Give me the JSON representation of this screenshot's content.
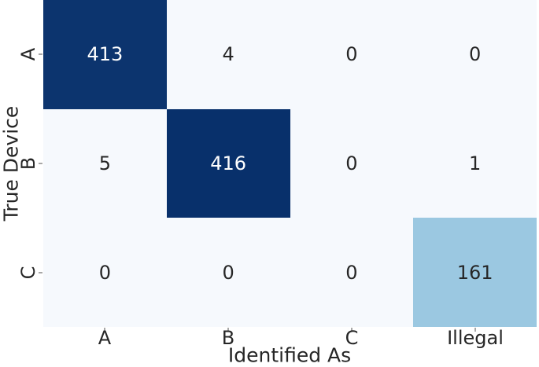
{
  "figure": {
    "background": "#ffffff",
    "artifact_color": "#dcdcdc"
  },
  "chart_data": {
    "type": "heatmap",
    "title": "",
    "xlabel": "Identified As",
    "ylabel": "True Device",
    "x_categories": [
      "A",
      "B",
      "C",
      "Illegal"
    ],
    "y_categories": [
      "A",
      "B",
      "C"
    ],
    "values": [
      [
        413,
        4,
        0,
        0
      ],
      [
        5,
        416,
        0,
        1
      ],
      [
        0,
        0,
        0,
        161
      ]
    ],
    "colormap": "Blues",
    "vmin": 0,
    "vmax": 416,
    "cell_colors": [
      [
        "#0c346e",
        "#f6f9fd",
        "#f6f9fd",
        "#f6f9fd"
      ],
      [
        "#f6f9fd",
        "#08306b",
        "#f6f9fd",
        "#f6f9fd"
      ],
      [
        "#f6f9fd",
        "#f6f9fd",
        "#f6f9fd",
        "#9bc8e1"
      ]
    ],
    "text_colors": [
      [
        "#ffffff",
        "#262626",
        "#262626",
        "#262626"
      ],
      [
        "#262626",
        "#ffffff",
        "#262626",
        "#262626"
      ],
      [
        "#262626",
        "#262626",
        "#262626",
        "#262626"
      ]
    ],
    "tick_color": "#a8a8a8",
    "label_color": "#262626",
    "grid": false,
    "legend": false
  }
}
